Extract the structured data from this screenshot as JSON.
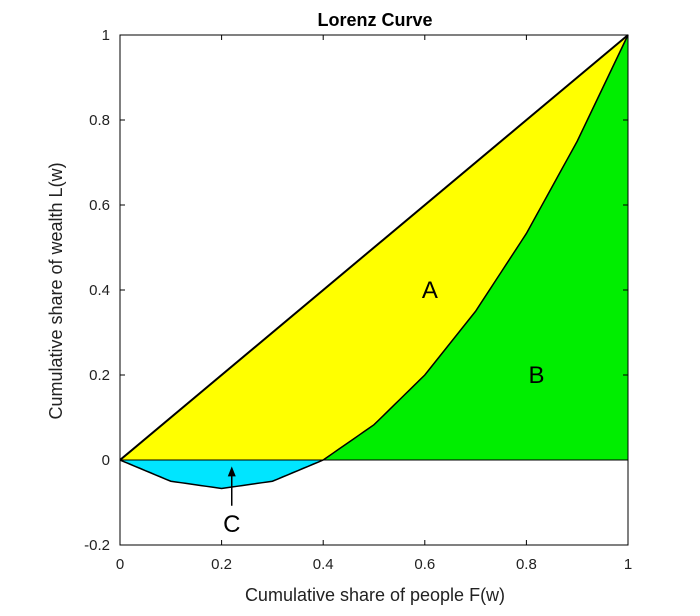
{
  "chart_data": {
    "type": "area",
    "title": "Lorenz Curve",
    "xlabel": "Cumulative share of people F(w)",
    "ylabel": "Cumulative share of wealth L(w)",
    "xlim": [
      0,
      1
    ],
    "ylim": [
      -0.2,
      1
    ],
    "xticks": [
      "0",
      "0.2",
      "0.4",
      "0.6",
      "0.8",
      "1"
    ],
    "yticks": [
      "-0.2",
      "0",
      "0.2",
      "0.4",
      "0.6",
      "0.8",
      "1"
    ],
    "grid": false,
    "series": [
      {
        "x": [
          0,
          1
        ],
        "y": [
          0,
          1
        ],
        "color": "#000000"
      },
      {
        "x": [
          0,
          0.1,
          0.2,
          0.3,
          0.4,
          0.5,
          0.6,
          0.7,
          0.8,
          0.9,
          1.0
        ],
        "y": [
          0,
          -0.05,
          -0.067,
          -0.05,
          0,
          0.083,
          0.2,
          0.35,
          0.533,
          0.75,
          1.0
        ],
        "color": "#000000"
      }
    ],
    "regions": [
      {
        "label": "A",
        "fill": "#ffff00",
        "label_at": [
          0.61,
          0.4
        ]
      },
      {
        "label": "B",
        "fill": "#00ee00",
        "label_at": [
          0.82,
          0.2
        ]
      },
      {
        "label": "C",
        "fill": "#00e5ff",
        "label_at": [
          0.22,
          -0.15
        ],
        "arrow_to": [
          0.22,
          -0.015
        ]
      }
    ]
  }
}
